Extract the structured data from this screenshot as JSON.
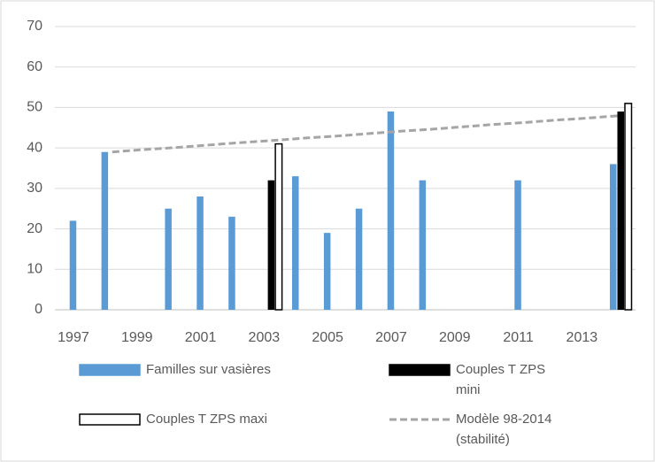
{
  "chart_data": {
    "type": "bar",
    "categories": [
      "1997",
      null,
      "1999",
      null,
      "2001",
      null,
      "2003",
      null,
      "2005",
      null,
      "2007",
      null,
      "2009",
      null,
      "2011",
      null,
      "2013",
      null
    ],
    "series": [
      {
        "name": "Familles sur vasières",
        "color": "#5b9bd5",
        "values": [
          22,
          39,
          null,
          25,
          28,
          23,
          null,
          33,
          19,
          25,
          49,
          32,
          null,
          null,
          32,
          null,
          null,
          36
        ]
      },
      {
        "name": "Couples T ZPS mini",
        "color": "#000000",
        "values": [
          null,
          null,
          null,
          null,
          null,
          null,
          32,
          null,
          null,
          null,
          null,
          null,
          null,
          null,
          null,
          null,
          null,
          49
        ]
      },
      {
        "name": "Couples T ZPS maxi",
        "color": "#ffffff",
        "values": [
          null,
          null,
          null,
          null,
          null,
          null,
          41,
          null,
          null,
          null,
          null,
          null,
          null,
          null,
          null,
          null,
          null,
          51
        ]
      },
      {
        "name": "Modèle 98-2014 (stabilité)",
        "color": "#a5a5a5",
        "type": "line",
        "dashed": true,
        "values": [
          null,
          39.0,
          39.6,
          40.1,
          40.7,
          41.3,
          41.8,
          42.4,
          42.9,
          43.5,
          44.1,
          44.6,
          45.2,
          45.8,
          46.3,
          46.9,
          47.4,
          48.0
        ]
      }
    ],
    "ylim": [
      0,
      70
    ],
    "yticks": [
      0,
      10,
      20,
      30,
      40,
      50,
      60,
      70
    ],
    "grid": true,
    "legend": "bottom"
  }
}
